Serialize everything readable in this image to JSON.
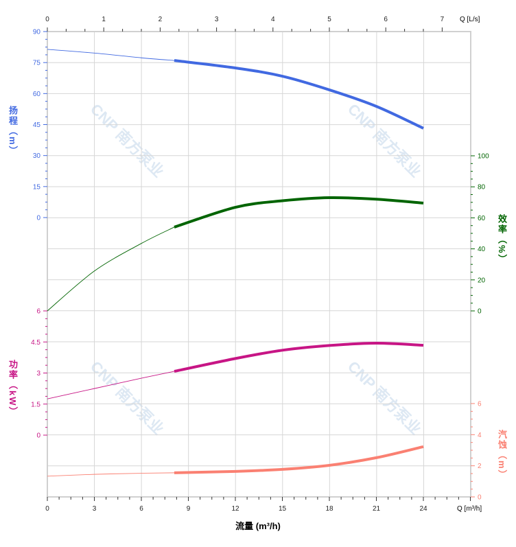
{
  "chart_data": {
    "type": "line",
    "xlabel": "流量 (m³/h)",
    "x_unit_label": "Q [m³/h]",
    "x_top_unit_label": "Q [L/s]",
    "xlim": [
      0,
      27
    ],
    "x_ticks": [
      0,
      3,
      6,
      9,
      12,
      15,
      18,
      21,
      24
    ],
    "x_top_ticks": [
      0,
      1,
      2,
      3,
      4,
      5,
      6,
      7
    ],
    "grid": true,
    "watermark": "CNP 南方泵业",
    "rated_range_start": 8.1,
    "axes": {
      "head": {
        "label": "扬程（m）",
        "ticks": [
          0,
          15,
          30,
          45,
          60,
          75,
          90
        ],
        "ylim": [
          0,
          90
        ],
        "color": "#4169e1",
        "side": "left"
      },
      "efficiency": {
        "label": "效率（%）",
        "ticks": [
          0,
          20,
          40,
          60,
          80,
          100
        ],
        "ylim": [
          0,
          100
        ],
        "color": "#006400",
        "side": "right"
      },
      "power": {
        "label": "功率（kW）",
        "ticks": [
          0,
          1.5,
          3,
          4.5,
          6
        ],
        "ylim": [
          0,
          6
        ],
        "color": "#c71585",
        "side": "left"
      },
      "npsh": {
        "label": "汽蚀（m）",
        "ticks": [
          0,
          2,
          4,
          6
        ],
        "ylim": [
          0,
          6
        ],
        "color": "#fa8072",
        "side": "right"
      }
    },
    "series": [
      {
        "axis": "head",
        "x": [
          0,
          3,
          6,
          8.1,
          12,
          15,
          18,
          21,
          24
        ],
        "y": [
          81.4,
          79.6,
          77.3,
          76,
          72.4,
          68.4,
          61.8,
          53.8,
          43.2
        ]
      },
      {
        "axis": "efficiency",
        "x": [
          0,
          3,
          6,
          8.1,
          12,
          15,
          18,
          21,
          24
        ],
        "y": [
          0,
          25.7,
          43.5,
          54,
          66.8,
          71,
          73,
          72,
          69.5
        ]
      },
      {
        "axis": "power",
        "x": [
          0,
          3,
          6,
          8.1,
          12,
          15,
          18,
          21,
          24
        ],
        "y": [
          1.75,
          2.25,
          2.75,
          3.08,
          3.7,
          4.1,
          4.33,
          4.44,
          4.34
        ]
      },
      {
        "axis": "npsh",
        "x": [
          0,
          3,
          6,
          8.1,
          12,
          15,
          18,
          21,
          24
        ],
        "y": [
          1.33,
          1.45,
          1.52,
          1.55,
          1.64,
          1.77,
          2.03,
          2.52,
          3.23
        ]
      }
    ]
  }
}
